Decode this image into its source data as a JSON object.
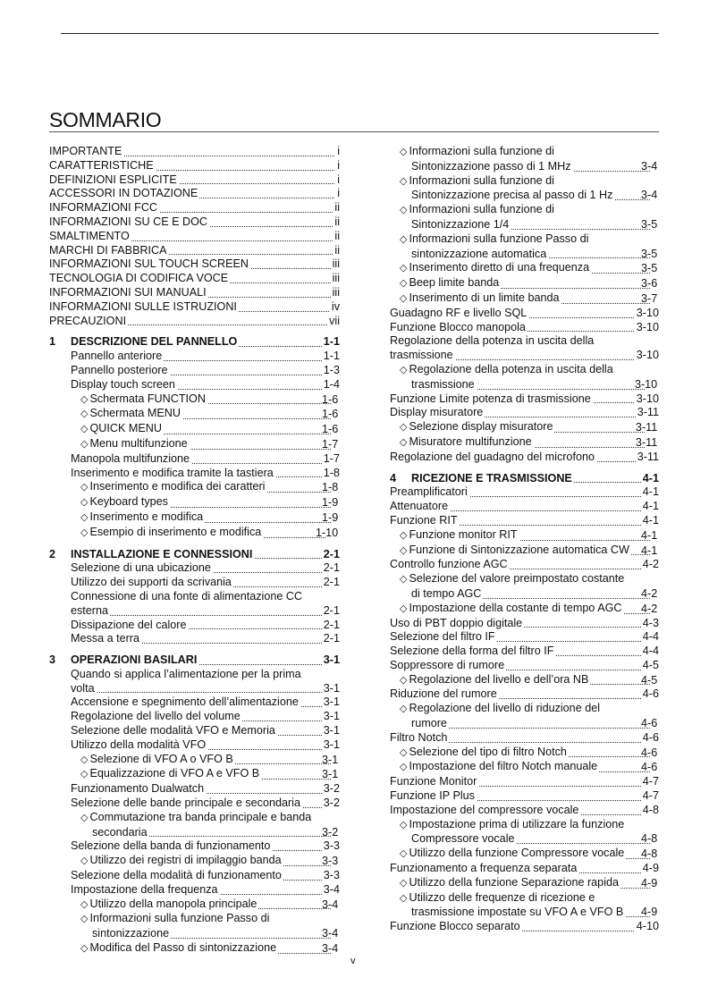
{
  "title": "SOMMARIO",
  "page_number": "v",
  "toc": {
    "left": [
      {
        "lvl": 0,
        "title": "IMPORTANTE",
        "page": "i"
      },
      {
        "lvl": 0,
        "title": "CARATTERISTICHE",
        "page": "i"
      },
      {
        "lvl": 0,
        "title": "DEFINIZIONI ESPLICITE",
        "page": "i"
      },
      {
        "lvl": 0,
        "title": "ACCESSORI IN DOTAZIONE",
        "page": "i"
      },
      {
        "lvl": 0,
        "title": "INFORMAZIONI FCC",
        "page": "ii"
      },
      {
        "lvl": 0,
        "title": "INFORMAZIONI SU CE E DOC",
        "page": "ii"
      },
      {
        "lvl": 0,
        "title": "SMALTIMENTO",
        "page": "ii"
      },
      {
        "lvl": 0,
        "title": "MARCHI DI FABBRICA",
        "page": "ii"
      },
      {
        "lvl": 0,
        "title": "INFORMAZIONI SUL TOUCH SCREEN",
        "page": "iii"
      },
      {
        "lvl": 0,
        "title": "TECNOLOGIA DI CODIFICA VOCE",
        "page": "iii"
      },
      {
        "lvl": 0,
        "title": "INFORMAZIONI SUI MANUALI",
        "page": "iii"
      },
      {
        "lvl": 0,
        "title": "INFORMAZIONI SULLE ISTRUZIONI",
        "page": "iv"
      },
      {
        "lvl": 0,
        "title": "PRECAUZIONI",
        "page": "vii"
      },
      {
        "lvl": "ch",
        "num": "1",
        "title": "DESCRIZIONE DEL PANNELLO",
        "page": "1-1"
      },
      {
        "lvl": 1,
        "title": "Pannello anteriore",
        "page": "1-1"
      },
      {
        "lvl": 1,
        "title": "Pannello posteriore",
        "page": "1-3"
      },
      {
        "lvl": 1,
        "title": "Display touch screen",
        "page": "1-4"
      },
      {
        "lvl": 2,
        "title": "Schermata FUNCTION",
        "page": "1-6"
      },
      {
        "lvl": 2,
        "title": "Schermata MENU",
        "page": "1-6"
      },
      {
        "lvl": 2,
        "title": "QUICK MENU",
        "page": "1-6"
      },
      {
        "lvl": 2,
        "title": "Menu multifunzione",
        "page": "1-7"
      },
      {
        "lvl": 1,
        "title": "Manopola multifunzione",
        "page": "1-7"
      },
      {
        "lvl": 1,
        "title": "Inserimento e modifica tramite la tastiera",
        "page": "1-8"
      },
      {
        "lvl": 2,
        "title": "Inserimento e modifica dei caratteri",
        "page": "1-8"
      },
      {
        "lvl": 2,
        "title": "Keyboard types",
        "page": "1-9"
      },
      {
        "lvl": 2,
        "title": "Inserimento e modifica",
        "page": "1-9"
      },
      {
        "lvl": 2,
        "title": "Esempio di inserimento e modifica",
        "page": "1-10"
      },
      {
        "lvl": "ch",
        "num": "2",
        "title": "INSTALLAZIONE E CONNESSIONI",
        "page": "2-1"
      },
      {
        "lvl": 1,
        "title": "Selezione di una ubicazione",
        "page": "2-1"
      },
      {
        "lvl": 1,
        "title": "Utilizzo dei supporti da scrivania",
        "page": "2-1"
      },
      {
        "lvl": 1,
        "title": "Connessione di una fonte di alimentazione CC esterna",
        "page": "2-1"
      },
      {
        "lvl": 1,
        "title": "Dissipazione del calore",
        "page": "2-1"
      },
      {
        "lvl": 1,
        "title": "Messa a terra",
        "page": "2-1"
      },
      {
        "lvl": "ch",
        "num": "3",
        "title": "OPERAZIONI BASILARI",
        "page": "3-1"
      },
      {
        "lvl": 1,
        "title": "Quando si applica l’alimentazione per la prima volta",
        "page": "3-1"
      },
      {
        "lvl": 1,
        "title": "Accensione e spegnimento dell’alimentazione",
        "page": "3-1"
      },
      {
        "lvl": 1,
        "title": "Regolazione del livello del volume",
        "page": "3-1"
      },
      {
        "lvl": 1,
        "title": "Selezione delle modalità VFO e Memoria",
        "page": "3-1"
      },
      {
        "lvl": 1,
        "title": "Utilizzo della modalità VFO",
        "page": "3-1"
      },
      {
        "lvl": 2,
        "title": "Selezione di VFO A o VFO B",
        "page": "3-1"
      },
      {
        "lvl": 2,
        "title": "Equalizzazione di VFO A e VFO B",
        "page": "3-1"
      },
      {
        "lvl": 1,
        "title": "Funzionamento Dualwatch",
        "page": "3-2"
      },
      {
        "lvl": 1,
        "title": "Selezione delle bande principale e secondaria",
        "page": "3-2"
      },
      {
        "lvl": 2,
        "title": "Commutazione tra banda principale e banda secondaria",
        "page": "3-2"
      },
      {
        "lvl": 1,
        "title": "Selezione della banda di funzionamento",
        "page": "3-3"
      },
      {
        "lvl": 2,
        "title": "Utilizzo dei registri di impilaggio banda",
        "page": "3-3"
      },
      {
        "lvl": 1,
        "title": "Selezione della modalità di funzionamento",
        "page": "3-3"
      },
      {
        "lvl": 1,
        "title": "Impostazione della frequenza",
        "page": "3-4"
      },
      {
        "lvl": 2,
        "title": "Utilizzo della manopola principale",
        "page": "3-4"
      },
      {
        "lvl": 2,
        "title": "Informazioni sulla funzione Passo di sintonizzazione",
        "page": "3-4"
      },
      {
        "lvl": 2,
        "title": "Modifica del Passo di sintonizzazione",
        "page": "3-4"
      }
    ],
    "right": [
      {
        "lvl": 2,
        "title": "Informazioni sulla funzione di Sintonizzazione passo di 1 MHz",
        "page": "3-4"
      },
      {
        "lvl": 2,
        "title": "Informazioni sulla funzione di Sintonizzazione precisa al passo di 1 Hz",
        "page": "3-4"
      },
      {
        "lvl": 2,
        "title": "Informazioni sulla funzione di Sintonizzazione 1/4",
        "page": "3-5"
      },
      {
        "lvl": 2,
        "title": "Informazioni sulla funzione Passo di sintonizzazione automatica",
        "page": "3-5"
      },
      {
        "lvl": 2,
        "title": "Inserimento diretto di una frequenza",
        "page": "3-5"
      },
      {
        "lvl": 2,
        "title": "Beep limite banda",
        "page": "3-6"
      },
      {
        "lvl": 2,
        "title": "Inserimento di un limite banda",
        "page": "3-7"
      },
      {
        "lvl": 1,
        "title": "Guadagno RF e livello SQL",
        "page": "3-10"
      },
      {
        "lvl": 1,
        "title": "Funzione Blocco manopola",
        "page": "3-10"
      },
      {
        "lvl": 1,
        "title": "Regolazione della potenza in uscita della trasmissione",
        "page": "3-10"
      },
      {
        "lvl": 2,
        "title": "Regolazione della potenza in uscita della trasmissione",
        "page": "3-10"
      },
      {
        "lvl": 1,
        "title": "Funzione Limite potenza di trasmissione",
        "page": "3-10"
      },
      {
        "lvl": 1,
        "title": "Display misuratore",
        "page": "3-11"
      },
      {
        "lvl": 2,
        "title": "Selezione display misuratore",
        "page": "3-11"
      },
      {
        "lvl": 2,
        "title": "Misuratore multifunzione",
        "page": "3-11"
      },
      {
        "lvl": 1,
        "title": "Regolazione del guadagno del microfono",
        "page": "3-11"
      },
      {
        "lvl": "ch",
        "num": "4",
        "title": "RICEZIONE E TRASMISSIONE",
        "page": "4-1"
      },
      {
        "lvl": 1,
        "title": "Preamplificatori",
        "page": "4-1"
      },
      {
        "lvl": 1,
        "title": "Attenuatore",
        "page": "4-1"
      },
      {
        "lvl": 1,
        "title": "Funzione RIT",
        "page": "4-1"
      },
      {
        "lvl": 2,
        "title": "Funzione monitor RIT",
        "page": "4-1"
      },
      {
        "lvl": 2,
        "title": "Funzione di Sintonizzazione automatica CW",
        "page": "4-1"
      },
      {
        "lvl": 1,
        "title": "Controllo funzione AGC",
        "page": "4-2"
      },
      {
        "lvl": 2,
        "title": "Selezione del valore preimpostato costante di tempo AGC",
        "page": "4-2"
      },
      {
        "lvl": 2,
        "title": "Impostazione della costante di tempo AGC",
        "page": "4-2"
      },
      {
        "lvl": 1,
        "title": "Uso di PBT doppio digitale",
        "page": "4-3"
      },
      {
        "lvl": 1,
        "title": "Selezione del filtro IF",
        "page": "4-4"
      },
      {
        "lvl": 1,
        "title": "Selezione della forma del filtro IF",
        "page": "4-4"
      },
      {
        "lvl": 1,
        "title": "Soppressore di rumore",
        "page": "4-5"
      },
      {
        "lvl": 2,
        "title": "Regolazione del livello e dell’ora NB",
        "page": "4-5"
      },
      {
        "lvl": 1,
        "title": "Riduzione del rumore",
        "page": "4-6"
      },
      {
        "lvl": 2,
        "title": "Regolazione del livello di riduzione del rumore",
        "page": "4-6"
      },
      {
        "lvl": 1,
        "title": "Filtro Notch",
        "page": "4-6"
      },
      {
        "lvl": 2,
        "title": "Selezione del tipo di filtro Notch",
        "page": "4-6"
      },
      {
        "lvl": 2,
        "title": "Impostazione del filtro Notch manuale",
        "page": "4-6"
      },
      {
        "lvl": 1,
        "title": "Funzione Monitor",
        "page": "4-7"
      },
      {
        "lvl": 1,
        "title": "Funzione IP Plus",
        "page": "4-7"
      },
      {
        "lvl": 1,
        "title": "Impostazione del compressore vocale",
        "page": "4-8"
      },
      {
        "lvl": 2,
        "title": "Impostazione prima di utilizzare la funzione Compressore vocale",
        "page": "4-8"
      },
      {
        "lvl": 2,
        "title": "Utilizzo della funzione Compressore vocale",
        "page": "4-8"
      },
      {
        "lvl": 1,
        "title": "Funzionamento a frequenza separata",
        "page": "4-9"
      },
      {
        "lvl": 2,
        "title": "Utilizzo della funzione Separazione rapida",
        "page": "4-9"
      },
      {
        "lvl": 2,
        "title": "Utilizzo delle frequenze di ricezione e trasmissione impostate su VFO A e VFO B",
        "page": "4-9"
      },
      {
        "lvl": 1,
        "title": "Funzione Blocco separato",
        "page": "4-10"
      }
    ]
  }
}
